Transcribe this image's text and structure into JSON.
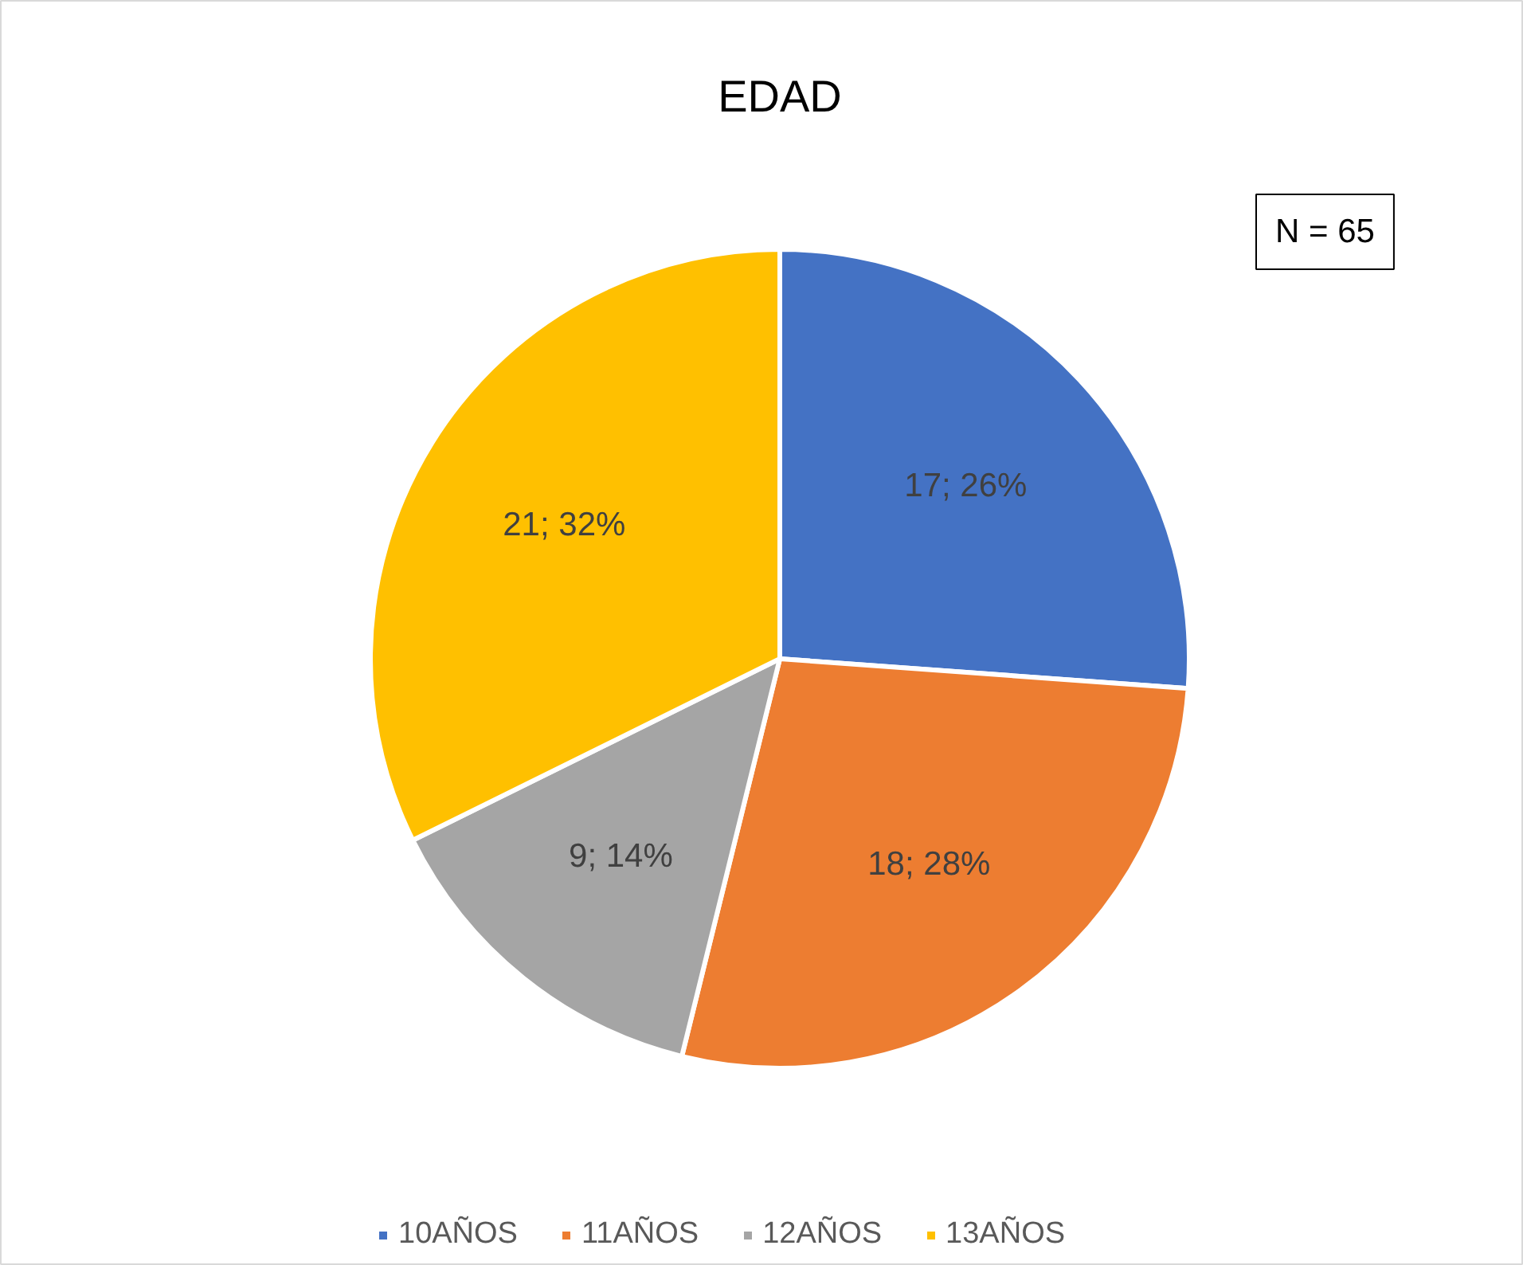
{
  "chart_data": {
    "type": "pie",
    "title": "EDAD",
    "categories": [
      "10AÑOS",
      "11AÑOS",
      "12AÑOS",
      "13AÑOS"
    ],
    "values": [
      17,
      18,
      9,
      21
    ],
    "colors": [
      "#4472c4",
      "#ed7d31",
      "#a5a5a5",
      "#ffc000"
    ],
    "value_labels": [
      "17; 26%",
      "18; 28%",
      "9; 14%",
      "21; 32%"
    ],
    "annotations": [
      "N = 65"
    ],
    "legend": "bottom"
  }
}
